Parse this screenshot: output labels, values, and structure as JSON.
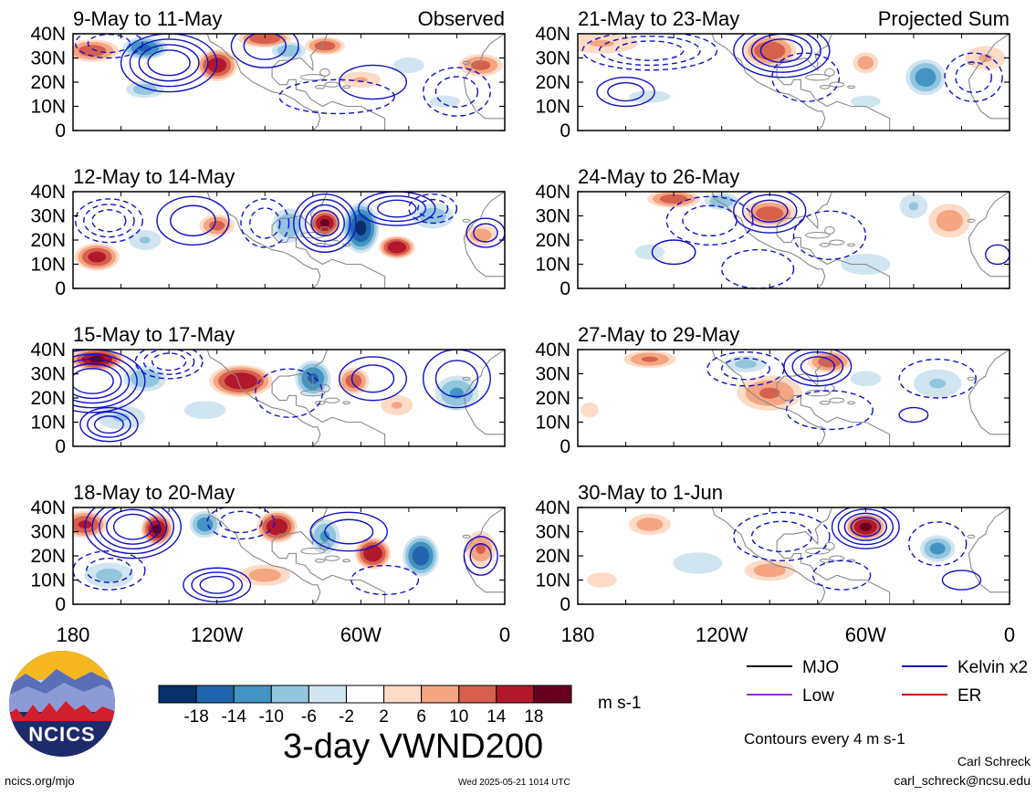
{
  "figure": {
    "title": "3-day VWND200",
    "units": "m s-1",
    "contour_note": "Contours every 4 m s-1",
    "credit_name": "Carl Schreck",
    "credit_email": "carl_schreck@ncsu.edu",
    "site": "ncics.org/mjo",
    "timestamp": "Wed 2025-05-21 1014 UTC",
    "logo_text": "NCICS"
  },
  "colors": {
    "bins": [
      "#08306b",
      "#2166ac",
      "#4393c3",
      "#92c5de",
      "#d1e5f0",
      "#ffffff",
      "#fddbc7",
      "#f4a582",
      "#d6604d",
      "#b2182b",
      "#67001f"
    ],
    "mjo": "#000000",
    "kelvin": "#1010c8",
    "low": "#9932cc",
    "er": "#cc0000",
    "land": "#888888"
  },
  "chart_data": {
    "type": "heatmap",
    "variable": "3-day VWND200",
    "x_tick_labels": [
      "180",
      "120W",
      "60W",
      "0"
    ],
    "xlim_deg": [
      -180,
      0
    ],
    "y_tick_labels": [
      "40N",
      "30N",
      "20N",
      "10N",
      "0"
    ],
    "ylim_deg": [
      0,
      40
    ],
    "colorbar_ticks": [
      "-18",
      "-14",
      "-10",
      "-6",
      "-2",
      "2",
      "6",
      "10",
      "14",
      "18"
    ],
    "colorbar_edges": [
      -18,
      -14,
      -10,
      -6,
      -2,
      2,
      6,
      10,
      14,
      18
    ],
    "contour_interval": 4,
    "legend": [
      {
        "name": "MJO",
        "color": "#000000"
      },
      {
        "name": "Kelvin x2",
        "color": "#1010c8"
      },
      {
        "name": "Low",
        "color": "#9932cc"
      },
      {
        "name": "ER",
        "color": "#cc0000"
      }
    ],
    "panels": [
      {
        "label": "9-May to 11-May",
        "tag": "Observed",
        "anomalies": [
          [
            -172,
            33,
            12,
            5,
            12
          ],
          [
            -150,
            34,
            10,
            5,
            -14
          ],
          [
            -150,
            17,
            9,
            4,
            -8
          ],
          [
            -120,
            27,
            9,
            7,
            16
          ],
          [
            -100,
            38,
            12,
            4,
            13
          ],
          [
            -90,
            33,
            8,
            4,
            -9
          ],
          [
            -75,
            35,
            9,
            4,
            12
          ],
          [
            -60,
            21,
            10,
            4,
            6
          ],
          [
            -40,
            27,
            8,
            4,
            -5
          ],
          [
            -10,
            27,
            10,
            5,
            11
          ],
          [
            -25,
            12,
            10,
            4,
            -3
          ]
        ],
        "contours": [
          {
            "lon": -140,
            "lat": 28,
            "rx": 20,
            "ry": 12,
            "sign": 1,
            "n": 4
          },
          {
            "lon": -100,
            "lat": 35,
            "rx": 14,
            "ry": 9,
            "sign": 1,
            "n": 2
          },
          {
            "lon": -55,
            "lat": 20,
            "rx": 14,
            "ry": 7,
            "sign": 1,
            "n": 1
          },
          {
            "lon": -165,
            "lat": 36,
            "rx": 14,
            "ry": 6,
            "sign": -1,
            "n": 2
          },
          {
            "lon": -70,
            "lat": 14,
            "rx": 24,
            "ry": 7,
            "sign": -1,
            "n": 1
          },
          {
            "lon": -20,
            "lat": 16,
            "rx": 14,
            "ry": 10,
            "sign": -1,
            "n": 2
          }
        ]
      },
      {
        "label": "21-May to 23-May",
        "tag": "Projected Sum",
        "anomalies": [
          [
            -170,
            36,
            18,
            5,
            6
          ],
          [
            -100,
            33,
            12,
            7,
            13
          ],
          [
            -35,
            22,
            9,
            8,
            -12
          ],
          [
            -60,
            28,
            6,
            5,
            8
          ],
          [
            -10,
            30,
            10,
            6,
            6
          ],
          [
            -150,
            14,
            14,
            4,
            -3
          ],
          [
            -60,
            12,
            10,
            4,
            -3
          ]
        ],
        "contours": [
          {
            "lon": -95,
            "lat": 33,
            "rx": 20,
            "ry": 11,
            "sign": 1,
            "n": 4
          },
          {
            "lon": -160,
            "lat": 16,
            "rx": 12,
            "ry": 6,
            "sign": 1,
            "n": 2
          },
          {
            "lon": -150,
            "lat": 33,
            "rx": 28,
            "ry": 8,
            "sign": -1,
            "n": 3
          },
          {
            "lon": -15,
            "lat": 22,
            "rx": 12,
            "ry": 10,
            "sign": -1,
            "n": 2
          },
          {
            "lon": -85,
            "lat": 22,
            "rx": 14,
            "ry": 10,
            "sign": -1,
            "n": 1
          }
        ]
      },
      {
        "label": "12-May to 14-May",
        "tag": "",
        "anomalies": [
          [
            -170,
            13,
            10,
            6,
            15
          ],
          [
            -150,
            20,
            8,
            5,
            -6
          ],
          [
            -120,
            26,
            8,
            5,
            11
          ],
          [
            -90,
            26,
            8,
            8,
            -9
          ],
          [
            -75,
            27,
            7,
            6,
            18
          ],
          [
            -60,
            25,
            8,
            11,
            -18
          ],
          [
            -45,
            17,
            8,
            5,
            17
          ],
          [
            -30,
            30,
            10,
            6,
            -8
          ],
          [
            -10,
            22,
            8,
            5,
            8
          ]
        ],
        "contours": [
          {
            "lon": -75,
            "lat": 27,
            "rx": 13,
            "ry": 12,
            "sign": 1,
            "n": 4
          },
          {
            "lon": -45,
            "lat": 33,
            "rx": 16,
            "ry": 7,
            "sign": 1,
            "n": 3
          },
          {
            "lon": -8,
            "lat": 23,
            "rx": 8,
            "ry": 6,
            "sign": 1,
            "n": 2
          },
          {
            "lon": -130,
            "lat": 28,
            "rx": 15,
            "ry": 10,
            "sign": 1,
            "n": 2
          },
          {
            "lon": -165,
            "lat": 28,
            "rx": 14,
            "ry": 9,
            "sign": -1,
            "n": 3
          },
          {
            "lon": -100,
            "lat": 27,
            "rx": 10,
            "ry": 10,
            "sign": -1,
            "n": 2
          },
          {
            "lon": -30,
            "lat": 33,
            "rx": 10,
            "ry": 6,
            "sign": -1,
            "n": 2
          }
        ]
      },
      {
        "label": "24-May to 26-May",
        "tag": "",
        "anomalies": [
          [
            -140,
            37,
            12,
            4,
            12
          ],
          [
            -100,
            31,
            12,
            6,
            12
          ],
          [
            -120,
            36,
            8,
            4,
            -9
          ],
          [
            -40,
            34,
            7,
            6,
            -6
          ],
          [
            -25,
            28,
            10,
            8,
            8
          ],
          [
            -150,
            15,
            10,
            5,
            -3
          ],
          [
            -60,
            10,
            14,
            6,
            -4
          ]
        ],
        "contours": [
          {
            "lon": -100,
            "lat": 32,
            "rx": 15,
            "ry": 9,
            "sign": 1,
            "n": 3
          },
          {
            "lon": -140,
            "lat": 15,
            "rx": 9,
            "ry": 5,
            "sign": 1,
            "n": 1
          },
          {
            "lon": -5,
            "lat": 14,
            "rx": 5,
            "ry": 4,
            "sign": 1,
            "n": 1
          },
          {
            "lon": -125,
            "lat": 28,
            "rx": 18,
            "ry": 10,
            "sign": -1,
            "n": 2
          },
          {
            "lon": -105,
            "lat": 8,
            "rx": 15,
            "ry": 8,
            "sign": -1,
            "n": 1
          },
          {
            "lon": -75,
            "lat": 22,
            "rx": 15,
            "ry": 10,
            "sign": -1,
            "n": 1
          }
        ]
      },
      {
        "label": "15-May to 17-May",
        "tag": "",
        "anomalies": [
          [
            -170,
            36,
            12,
            5,
            18
          ],
          [
            -150,
            28,
            10,
            6,
            -9
          ],
          [
            -110,
            27,
            14,
            7,
            17
          ],
          [
            -80,
            28,
            8,
            8,
            -14
          ],
          [
            -63,
            27,
            7,
            6,
            12
          ],
          [
            -45,
            17,
            8,
            5,
            6
          ],
          [
            -20,
            22,
            10,
            8,
            -10
          ],
          [
            -160,
            12,
            12,
            6,
            -6
          ],
          [
            -125,
            15,
            14,
            6,
            -3
          ]
        ],
        "contours": [
          {
            "lon": -172,
            "lat": 27,
            "rx": 22,
            "ry": 13,
            "sign": 1,
            "n": 5
          },
          {
            "lon": -165,
            "lat": 9,
            "rx": 12,
            "ry": 7,
            "sign": 1,
            "n": 3
          },
          {
            "lon": -55,
            "lat": 28,
            "rx": 14,
            "ry": 9,
            "sign": 1,
            "n": 2
          },
          {
            "lon": -20,
            "lat": 28,
            "rx": 14,
            "ry": 12,
            "sign": 1,
            "n": 2
          },
          {
            "lon": -140,
            "lat": 35,
            "rx": 14,
            "ry": 7,
            "sign": -1,
            "n": 3
          },
          {
            "lon": -90,
            "lat": 22,
            "rx": 14,
            "ry": 10,
            "sign": -1,
            "n": 1
          }
        ]
      },
      {
        "label": "27-May to 29-May",
        "tag": "",
        "anomalies": [
          [
            -150,
            36,
            12,
            4,
            10
          ],
          [
            -100,
            22,
            15,
            8,
            10
          ],
          [
            -75,
            35,
            10,
            5,
            12
          ],
          [
            -110,
            34,
            10,
            4,
            -7
          ],
          [
            -60,
            28,
            8,
            4,
            -5
          ],
          [
            -30,
            26,
            12,
            7,
            -6
          ],
          [
            -175,
            15,
            6,
            5,
            3
          ]
        ],
        "contours": [
          {
            "lon": -80,
            "lat": 33,
            "rx": 14,
            "ry": 8,
            "sign": 1,
            "n": 3
          },
          {
            "lon": -40,
            "lat": 13,
            "rx": 6,
            "ry": 3,
            "sign": 1,
            "n": 1
          },
          {
            "lon": -110,
            "lat": 32,
            "rx": 16,
            "ry": 7,
            "sign": -1,
            "n": 2
          },
          {
            "lon": -75,
            "lat": 15,
            "rx": 18,
            "ry": 8,
            "sign": -1,
            "n": 1
          },
          {
            "lon": -30,
            "lat": 28,
            "rx": 16,
            "ry": 8,
            "sign": -1,
            "n": 1
          }
        ]
      },
      {
        "label": "18-May to 20-May",
        "tag": "",
        "anomalies": [
          [
            -175,
            33,
            10,
            6,
            14
          ],
          [
            -145,
            31,
            7,
            7,
            18
          ],
          [
            -125,
            33,
            7,
            6,
            -12
          ],
          [
            -95,
            32,
            9,
            7,
            17
          ],
          [
            -75,
            28,
            7,
            8,
            -10
          ],
          [
            -55,
            21,
            8,
            7,
            17
          ],
          [
            -35,
            20,
            8,
            9,
            -16
          ],
          [
            -10,
            23,
            7,
            8,
            10
          ],
          [
            -165,
            12,
            12,
            6,
            -7
          ],
          [
            -100,
            12,
            12,
            5,
            8
          ]
        ],
        "contours": [
          {
            "lon": -155,
            "lat": 32,
            "rx": 20,
            "ry": 13,
            "sign": 1,
            "n": 5
          },
          {
            "lon": -120,
            "lat": 8,
            "rx": 14,
            "ry": 7,
            "sign": 1,
            "n": 3
          },
          {
            "lon": -10,
            "lat": 20,
            "rx": 7,
            "ry": 8,
            "sign": 1,
            "n": 2
          },
          {
            "lon": -65,
            "lat": 30,
            "rx": 16,
            "ry": 8,
            "sign": 1,
            "n": 2
          },
          {
            "lon": -110,
            "lat": 34,
            "rx": 14,
            "ry": 7,
            "sign": -1,
            "n": 2
          },
          {
            "lon": -165,
            "lat": 14,
            "rx": 15,
            "ry": 8,
            "sign": -1,
            "n": 2
          },
          {
            "lon": -50,
            "lat": 10,
            "rx": 14,
            "ry": 6,
            "sign": -1,
            "n": 1
          }
        ]
      },
      {
        "label": "30-May to 1-Jun",
        "tag": "",
        "anomalies": [
          [
            -150,
            33,
            10,
            5,
            8
          ],
          [
            -60,
            32,
            9,
            6,
            18
          ],
          [
            -30,
            23,
            8,
            6,
            -11
          ],
          [
            -100,
            14,
            12,
            5,
            8
          ],
          [
            -130,
            17,
            14,
            6,
            -4
          ],
          [
            -170,
            10,
            10,
            5,
            3
          ]
        ],
        "contours": [
          {
            "lon": -60,
            "lat": 32,
            "rx": 14,
            "ry": 9,
            "sign": 1,
            "n": 4
          },
          {
            "lon": -20,
            "lat": 10,
            "rx": 8,
            "ry": 4,
            "sign": 1,
            "n": 1
          },
          {
            "lon": -95,
            "lat": 28,
            "rx": 20,
            "ry": 10,
            "sign": -1,
            "n": 2
          },
          {
            "lon": -30,
            "lat": 25,
            "rx": 12,
            "ry": 9,
            "sign": -1,
            "n": 1
          },
          {
            "lon": -70,
            "lat": 12,
            "rx": 12,
            "ry": 6,
            "sign": -1,
            "n": 1
          }
        ]
      }
    ]
  }
}
